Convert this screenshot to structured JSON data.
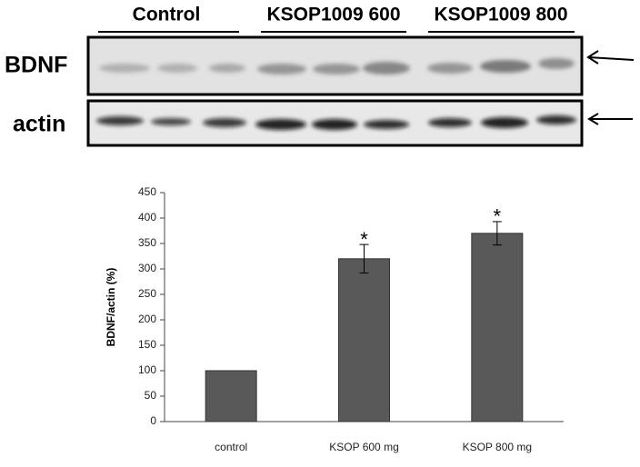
{
  "blot": {
    "groups": [
      "Control",
      "KSOP1009 600",
      "KSOP1009 800"
    ],
    "rows": [
      "BDNF",
      "actin"
    ]
  },
  "chart_data": {
    "type": "bar",
    "ylabel": "BDNF/actin (%)",
    "categories": [
      "control",
      "KSOP 600 mg",
      "KSOP 800 mg"
    ],
    "values": [
      100,
      320,
      370
    ],
    "errors": [
      null,
      28,
      23
    ],
    "annotations": [
      null,
      "*",
      "*"
    ],
    "color": "#595959",
    "ylim": [
      0,
      450
    ],
    "yticks": [
      0,
      50,
      100,
      150,
      200,
      250,
      300,
      350,
      400,
      450
    ]
  }
}
